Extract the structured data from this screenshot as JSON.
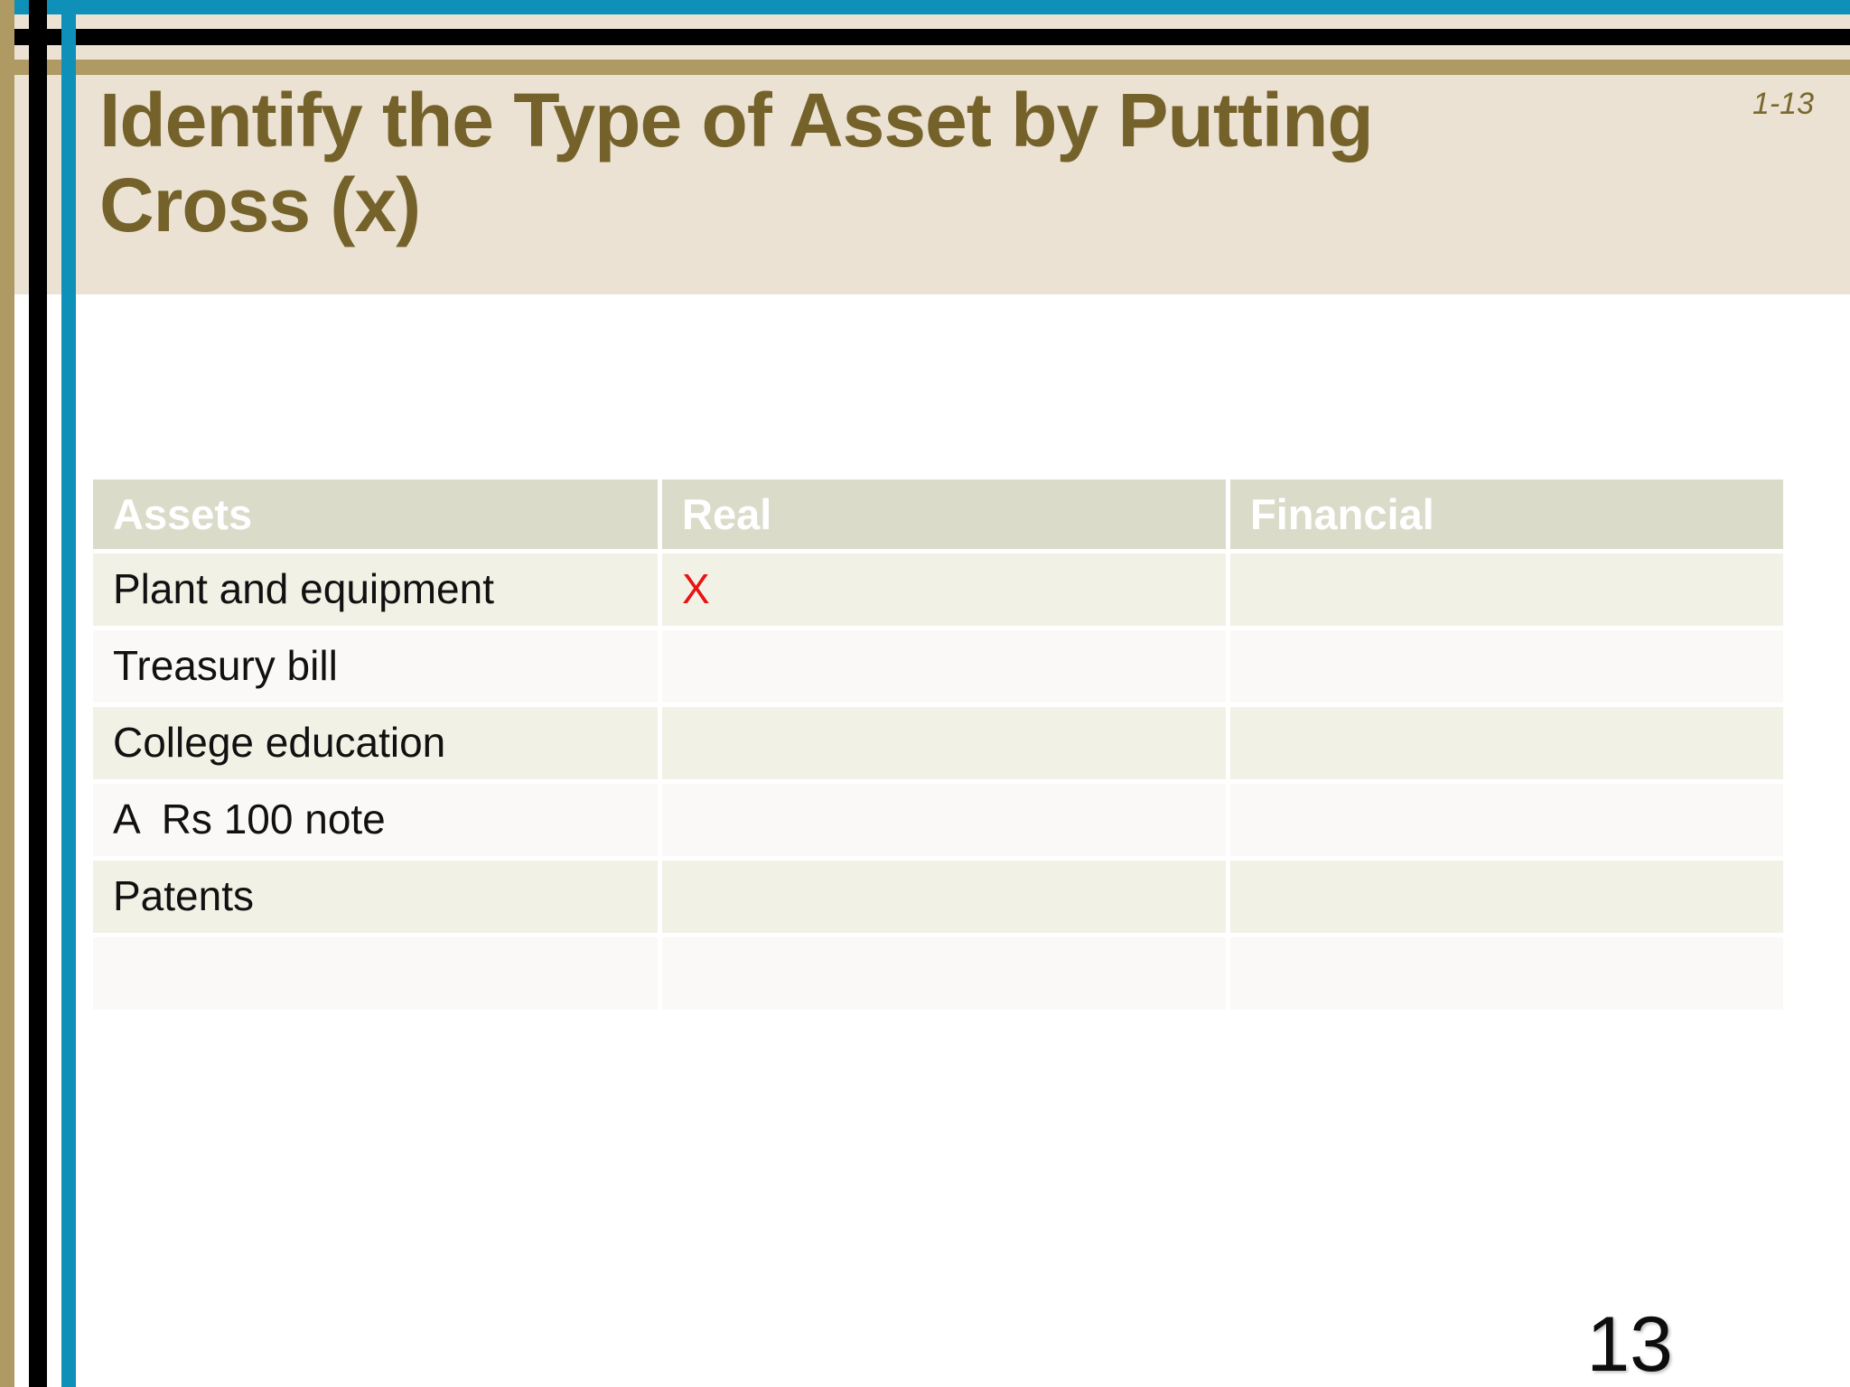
{
  "slide": {
    "ref": "1-13",
    "title_line1": "Identify the Type of Asset by Putting",
    "title_line2": "Cross (x)",
    "page_number": "13"
  },
  "table": {
    "headers": {
      "assets": "Assets",
      "real": "Real",
      "financial": "Financial"
    },
    "rows": [
      {
        "asset": "Plant and equipment",
        "real": "X",
        "financial": ""
      },
      {
        "asset": "Treasury bill",
        "real": "",
        "financial": ""
      },
      {
        "asset": "College education",
        "real": "",
        "financial": ""
      },
      {
        "asset": "A  Rs 100 note",
        "real": "",
        "financial": ""
      },
      {
        "asset": "Patents",
        "real": "",
        "financial": ""
      },
      {
        "asset": "",
        "real": "",
        "financial": ""
      }
    ]
  },
  "colors": {
    "accent_blue": "#0F90B8",
    "accent_tan": "#AF9A63",
    "accent_black": "#000000",
    "banner_beige": "#EBE2D3",
    "header_bg": "#DBDBCA",
    "row_beige": "#F2F1E6",
    "row_white": "#FAF9F7",
    "title_olive": "#75622A",
    "cross_red": "#E81414"
  }
}
